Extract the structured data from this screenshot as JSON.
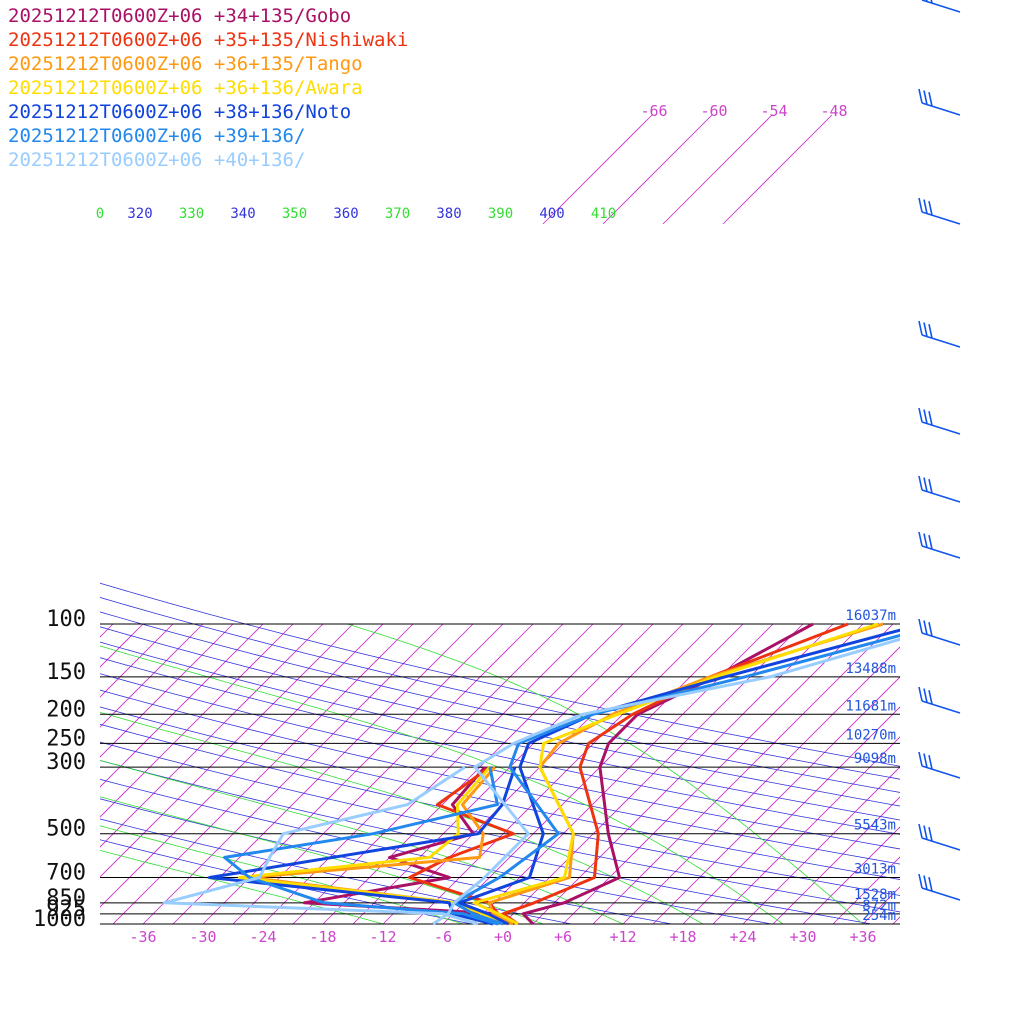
{
  "chart_data": {
    "type": "line",
    "title": "",
    "xlabel": "",
    "ylabel": "",
    "pressure_levels": [
      100,
      150,
      200,
      250,
      300,
      500,
      700,
      850,
      925,
      1000
    ],
    "pressure_labels": [
      "100",
      "150",
      "200",
      "250",
      "300",
      "500",
      "700",
      "850",
      "925",
      "1000"
    ],
    "height_labels": [
      "16037m",
      "13488m",
      "11681m",
      "10270m",
      "9098m",
      "5543m",
      "3013m",
      "1528m",
      "872m",
      "254m"
    ],
    "temperature_ticks": [
      "-36",
      "-30",
      "-24",
      "-18",
      "-12",
      "-6",
      "+0",
      "+6",
      "+12",
      "+18",
      "+24",
      "+30",
      "+36"
    ],
    "temperature_tick_values": [
      -36,
      -30,
      -24,
      -18,
      -12,
      -6,
      0,
      6,
      12,
      18,
      24,
      30,
      36
    ],
    "upper_temperature_ticks": [
      "-66",
      "-60",
      "-54",
      "-48"
    ],
    "theta_labels": [
      "0",
      "320",
      "330",
      "340",
      "350",
      "360",
      "370",
      "380",
      "390",
      "400",
      "410"
    ],
    "xlim": [
      -40,
      40
    ],
    "ylim": [
      1000,
      100
    ],
    "y_scale": "log",
    "legend_position": "top-left",
    "series": [
      {
        "name": "20251212T0600Z+06 +34+135/Gobo",
        "color": "#aa1166",
        "temperature": [
          [
            1000,
            3.0
          ],
          [
            925,
            1.0
          ],
          [
            850,
            4.0
          ],
          [
            700,
            7.0
          ],
          [
            500,
            1.5
          ],
          [
            300,
            -6.0
          ],
          [
            250,
            -7.5
          ],
          [
            200,
            -7.5
          ],
          [
            150,
            -3.5
          ],
          [
            100,
            1.0
          ]
        ],
        "dewpoint": [
          [
            1000,
            1.0
          ],
          [
            925,
            -1.5
          ],
          [
            850,
            -22.0
          ],
          [
            700,
            -10.0
          ],
          [
            600,
            -18.0
          ],
          [
            500,
            -12.0
          ],
          [
            400,
            -17.0
          ],
          [
            300,
            -17.5
          ]
        ]
      },
      {
        "name": "20251212T0600Z+06 +35+135/Nishiwaki",
        "color": "#ee3311",
        "temperature": [
          [
            1000,
            1.5
          ],
          [
            925,
            -1.0
          ],
          [
            850,
            1.0
          ],
          [
            700,
            4.5
          ],
          [
            500,
            0.5
          ],
          [
            300,
            -8.0
          ],
          [
            250,
            -9.5
          ],
          [
            200,
            -8.0
          ],
          [
            150,
            -4.0
          ],
          [
            100,
            4.5
          ]
        ],
        "dewpoint": [
          [
            1000,
            0.5
          ],
          [
            925,
            -1.5
          ],
          [
            850,
            -3.5
          ],
          [
            700,
            -14.0
          ],
          [
            600,
            -12.0
          ],
          [
            500,
            -8.0
          ],
          [
            400,
            -18.5
          ],
          [
            300,
            -17.0
          ]
        ]
      },
      {
        "name": "20251212T0600Z+06 +36+135/Tango",
        "color": "#ff9911",
        "temperature": [
          [
            1000,
            1.0
          ],
          [
            925,
            -2.0
          ],
          [
            850,
            -3.5
          ],
          [
            700,
            2.0
          ],
          [
            500,
            -2.0
          ],
          [
            300,
            -12.0
          ],
          [
            250,
            -12.5
          ],
          [
            200,
            -10.0
          ],
          [
            150,
            -4.0
          ],
          [
            100,
            8.0
          ]
        ],
        "dewpoint": [
          [
            1000,
            0.0
          ],
          [
            925,
            -3.0
          ],
          [
            850,
            -7.0
          ],
          [
            700,
            -30.0
          ],
          [
            600,
            -9.0
          ],
          [
            500,
            -11.0
          ],
          [
            400,
            -16.0
          ],
          [
            300,
            -16.5
          ]
        ]
      },
      {
        "name": "20251212T0600Z+06 +36+136/Awara",
        "color": "#ffdd00",
        "temperature": [
          [
            1000,
            1.5
          ],
          [
            925,
            -1.5
          ],
          [
            850,
            -5.0
          ],
          [
            700,
            1.5
          ],
          [
            500,
            -2.0
          ],
          [
            300,
            -12.0
          ],
          [
            250,
            -14.0
          ],
          [
            200,
            -9.5
          ],
          [
            150,
            -3.5
          ],
          [
            100,
            7.5
          ]
        ],
        "dewpoint": [
          [
            1000,
            0.0
          ],
          [
            925,
            -3.0
          ],
          [
            850,
            -7.0
          ],
          [
            700,
            -31.0
          ],
          [
            600,
            -14.0
          ],
          [
            500,
            -13.5
          ],
          [
            400,
            -16.5
          ],
          [
            300,
            -17.0
          ]
        ]
      },
      {
        "name": "20251212T0600Z+06 +38+136/Noto",
        "color": "#1144dd",
        "temperature": [
          [
            1000,
            0.5
          ],
          [
            925,
            -2.5
          ],
          [
            850,
            -6.5
          ],
          [
            700,
            -2.0
          ],
          [
            500,
            -5.0
          ],
          [
            300,
            -14.0
          ],
          [
            250,
            -15.5
          ],
          [
            200,
            -12.0
          ],
          [
            150,
            -2.5
          ],
          [
            100,
            12.0
          ]
        ],
        "dewpoint": [
          [
            1000,
            -1.0
          ],
          [
            925,
            -6.0
          ],
          [
            850,
            -7.5
          ],
          [
            700,
            -34.0
          ],
          [
            500,
            -11.5
          ],
          [
            400,
            -12.0
          ],
          [
            300,
            -14.5
          ]
        ]
      },
      {
        "name": "20251212T0600Z+06 +39+136/",
        "color": "#2288ee",
        "temperature": [
          [
            1000,
            0.0
          ],
          [
            925,
            -4.0
          ],
          [
            850,
            -7.0
          ],
          [
            700,
            -5.0
          ],
          [
            500,
            -3.5
          ],
          [
            300,
            -15.0
          ],
          [
            250,
            -16.5
          ],
          [
            200,
            -12.0
          ],
          [
            150,
            -0.5
          ],
          [
            100,
            14.0
          ]
        ],
        "dewpoint": [
          [
            1000,
            -0.5
          ],
          [
            925,
            -5.0
          ],
          [
            850,
            -20.0
          ],
          [
            700,
            -30.0
          ],
          [
            600,
            -34.5
          ],
          [
            500,
            -22.0
          ],
          [
            400,
            -12.5
          ],
          [
            300,
            -17.0
          ]
        ]
      },
      {
        "name": "20251212T0600Z+06 +40+136/",
        "color": "#99ccff",
        "temperature": [
          [
            1000,
            -7.0
          ],
          [
            925,
            -6.5
          ],
          [
            850,
            -7.0
          ],
          [
            700,
            -6.5
          ],
          [
            500,
            -6.5
          ],
          [
            300,
            -18.5
          ],
          [
            250,
            -17.0
          ],
          [
            200,
            -13.0
          ],
          [
            150,
            2.0
          ],
          [
            100,
            15.0
          ]
        ],
        "dewpoint": [
          [
            1000,
            -2.5
          ],
          [
            925,
            -7.0
          ],
          [
            850,
            -36.0
          ],
          [
            700,
            -29.0
          ],
          [
            600,
            -30.0
          ],
          [
            500,
            -31.0
          ],
          [
            400,
            -21.5
          ],
          [
            300,
            -19.5
          ]
        ]
      }
    ]
  },
  "colors": {
    "isotherm": "#cc22cc",
    "dry_adiabat": "#3333dd",
    "moist_adiabat": "#33dd33",
    "isobar": "#000000",
    "wind_barb": "#1155ee",
    "height_label": "#2255dd"
  }
}
